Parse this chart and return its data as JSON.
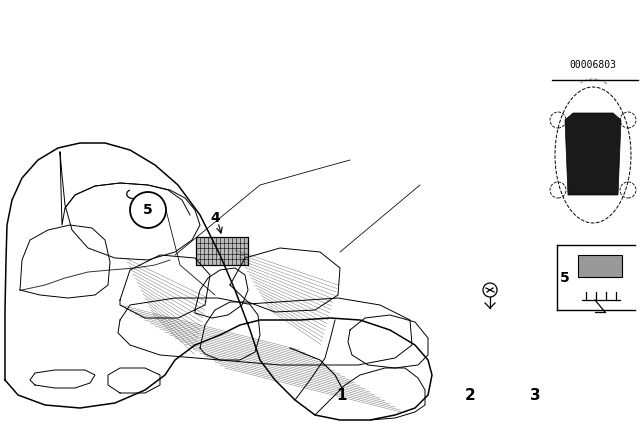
{
  "background_color": "#ffffff",
  "text_color": "#000000",
  "figsize": [
    6.4,
    4.48
  ],
  "dpi": 100,
  "code_text": "00006803",
  "lw_car": 1.1,
  "lw_detail": 0.7,
  "lw_hatch": 0.5
}
